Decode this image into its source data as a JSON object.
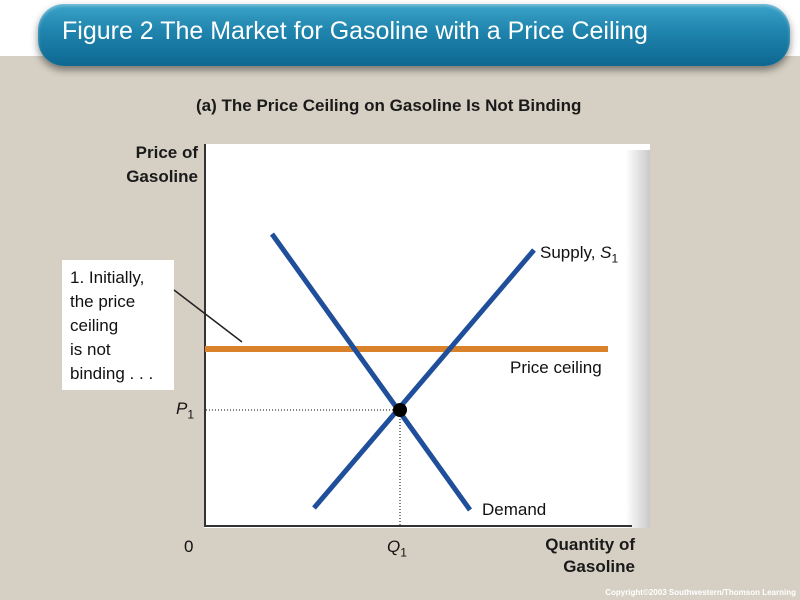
{
  "title": "Figure 2 The Market for Gasoline with a Price Ceiling",
  "panel_title": "(a) The Price Ceiling on Gasoline Is Not Binding",
  "axes": {
    "y_label": "Price of\nGasoline",
    "x_label": "Quantity of\nGasoline",
    "origin": "0"
  },
  "labels": {
    "supply_prefix": "Supply, ",
    "supply_symbol": "S",
    "supply_sub": "1",
    "demand": "Demand",
    "price_ceiling": "Price ceiling",
    "p1_symbol": "P",
    "p1_sub": "1",
    "q1_symbol": "Q",
    "q1_sub": "1"
  },
  "annotation": "1. Initially,\nthe price\nceiling\nis not\nbinding . . .",
  "copyright": "Copyright©2003  Southwestern/Thomson Learning",
  "colors": {
    "curves": "#1f4e9a",
    "price_ceiling": "#d9822b",
    "title_bar": "#1f84ad",
    "background": "#d6d0c4"
  }
}
